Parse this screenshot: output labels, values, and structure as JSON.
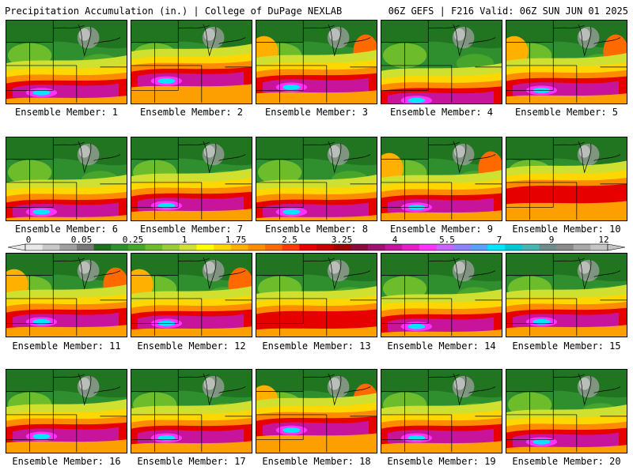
{
  "header": {
    "title": "Precipitation Accumulation (in.) | College of DuPage NEXLAB",
    "run": "06Z GEFS | F216 Valid: 06Z SUN JUN 01 2025"
  },
  "members": [
    {
      "label": "Ensemble Member: 1"
    },
    {
      "label": "Ensemble Member: 2"
    },
    {
      "label": "Ensemble Member: 3"
    },
    {
      "label": "Ensemble Member: 4"
    },
    {
      "label": "Ensemble Member: 5"
    },
    {
      "label": "Ensemble Member: 6"
    },
    {
      "label": "Ensemble Member: 7"
    },
    {
      "label": "Ensemble Member: 8"
    },
    {
      "label": "Ensemble Member: 9"
    },
    {
      "label": "Ensemble Member: 10"
    },
    {
      "label": "Ensemble Member: 11"
    },
    {
      "label": "Ensemble Member: 12"
    },
    {
      "label": "Ensemble Member: 13"
    },
    {
      "label": "Ensemble Member: 14"
    },
    {
      "label": "Ensemble Member: 15"
    },
    {
      "label": "Ensemble Member: 16"
    },
    {
      "label": "Ensemble Member: 17"
    },
    {
      "label": "Ensemble Member: 18"
    },
    {
      "label": "Ensemble Member: 19"
    },
    {
      "label": "Ensemble Member: 20"
    }
  ],
  "colorbar": {
    "tick_labels": [
      "0",
      "0.05",
      "0.25",
      "1",
      "1.75",
      "2.5",
      "3.25",
      "4",
      "5.5",
      "7",
      "9",
      "12"
    ],
    "colors": [
      "#e8e8e8",
      "#c8c8c8",
      "#a0a0a0",
      "#787878",
      "#1e6e1e",
      "#2f8f2f",
      "#47a52c",
      "#6cbc2c",
      "#9acd32",
      "#cfe030",
      "#ffff00",
      "#ffd700",
      "#ffb000",
      "#ff8c00",
      "#ff6a00",
      "#ff3c00",
      "#e60000",
      "#c80000",
      "#a00000",
      "#8b0a3c",
      "#a0106e",
      "#c8149b",
      "#e61ec8",
      "#ff32ff",
      "#c864ff",
      "#8c82ff",
      "#5aa0ff",
      "#00e6ff",
      "#00c8d2",
      "#48b4b4",
      "#6e8c8c",
      "#8a8a8a",
      "#a8a8a8",
      "#c4c4c4"
    ]
  }
}
